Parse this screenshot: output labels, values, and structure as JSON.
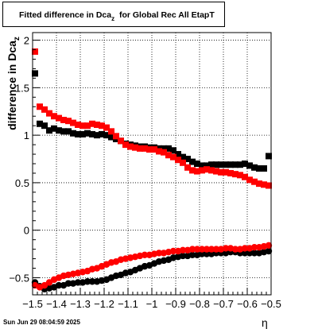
{
  "title": {
    "main": "Fitted difference in Dca",
    "subscript": "z",
    "suffix": "for Global Rec All EtapT"
  },
  "footer": "Sun Jun 29 08:04:59 2025",
  "chart_data": {
    "type": "scatter",
    "title": "Fitted difference in Dca_z for Global Rec All EtapT",
    "xlabel": "η",
    "ylabel": "difference in Dca_z",
    "xlim": [
      -1.5,
      -0.5
    ],
    "ylim": [
      -0.68,
      2.08
    ],
    "grid": true,
    "x_ticks": [
      -1.5,
      -1.4,
      -1.3,
      -1.2,
      -1.1,
      -1,
      -0.9,
      -0.8,
      -0.7,
      -0.6,
      -0.5
    ],
    "x_tick_labels": [
      "−1.5",
      "−1.4",
      "−1.3",
      "−1.2",
      "−1.1",
      "−1",
      "−0.9",
      "−0.8",
      "−0.7",
      "−0.6",
      "−0.5"
    ],
    "y_ticks": [
      -0.5,
      0,
      0.5,
      1,
      1.5,
      2
    ],
    "y_tick_labels": [
      "−0.5",
      "0",
      "0.5",
      "1",
      "1.5",
      "2"
    ],
    "series": [
      {
        "color": "#000000",
        "marker": "square",
        "x": [
          -1.49,
          -1.47,
          -1.45,
          -1.43,
          -1.41,
          -1.39,
          -1.37,
          -1.35,
          -1.33,
          -1.31,
          -1.29,
          -1.27,
          -1.25,
          -1.23,
          -1.21,
          -1.19,
          -1.17,
          -1.15,
          -1.13,
          -1.11,
          -1.09,
          -1.07,
          -1.05,
          -1.03,
          -1.01,
          -0.99,
          -0.97,
          -0.95,
          -0.93,
          -0.91,
          -0.89,
          -0.87,
          -0.85,
          -0.83,
          -0.81,
          -0.79,
          -0.77,
          -0.75,
          -0.73,
          -0.71,
          -0.69,
          -0.67,
          -0.65,
          -0.63,
          -0.61,
          -0.59,
          -0.57,
          -0.55,
          -0.53,
          -0.51
        ],
        "y": [
          1.65,
          1.12,
          1.1,
          1.05,
          1.07,
          1.05,
          1.04,
          1.04,
          1.02,
          1.01,
          1.01,
          1.02,
          1.01,
          1.0,
          1.01,
          1.0,
          0.98,
          0.96,
          0.94,
          0.91,
          0.9,
          0.89,
          0.88,
          0.88,
          0.87,
          0.87,
          0.86,
          0.86,
          0.86,
          0.84,
          0.8,
          0.77,
          0.75,
          0.72,
          0.7,
          0.68,
          0.68,
          0.69,
          0.69,
          0.69,
          0.69,
          0.69,
          0.69,
          0.69,
          0.7,
          0.68,
          0.66,
          0.65,
          0.65,
          0.78
        ]
      },
      {
        "color": "#ff0000",
        "marker": "square",
        "x": [
          -1.49,
          -1.47,
          -1.45,
          -1.43,
          -1.41,
          -1.39,
          -1.37,
          -1.35,
          -1.33,
          -1.31,
          -1.29,
          -1.27,
          -1.25,
          -1.23,
          -1.21,
          -1.19,
          -1.17,
          -1.15,
          -1.13,
          -1.11,
          -1.09,
          -1.07,
          -1.05,
          -1.03,
          -1.01,
          -0.99,
          -0.97,
          -0.95,
          -0.93,
          -0.91,
          -0.89,
          -0.87,
          -0.85,
          -0.83,
          -0.81,
          -0.79,
          -0.77,
          -0.75,
          -0.73,
          -0.71,
          -0.69,
          -0.67,
          -0.65,
          -0.63,
          -0.61,
          -0.59,
          -0.57,
          -0.55,
          -0.53,
          -0.51
        ],
        "y": [
          1.88,
          1.3,
          1.27,
          1.23,
          1.2,
          1.18,
          1.16,
          1.15,
          1.13,
          1.11,
          1.1,
          1.1,
          1.12,
          1.11,
          1.1,
          1.08,
          1.04,
          0.99,
          0.94,
          0.9,
          0.88,
          0.87,
          0.86,
          0.86,
          0.85,
          0.85,
          0.83,
          0.82,
          0.79,
          0.77,
          0.74,
          0.71,
          0.66,
          0.63,
          0.62,
          0.63,
          0.64,
          0.63,
          0.62,
          0.61,
          0.61,
          0.6,
          0.59,
          0.58,
          0.56,
          0.53,
          0.51,
          0.49,
          0.48,
          0.47
        ]
      },
      {
        "color": "#000000",
        "marker": "circle",
        "x": [
          -1.49,
          -1.47,
          -1.45,
          -1.43,
          -1.41,
          -1.39,
          -1.37,
          -1.35,
          -1.33,
          -1.31,
          -1.29,
          -1.27,
          -1.25,
          -1.23,
          -1.21,
          -1.19,
          -1.17,
          -1.15,
          -1.13,
          -1.11,
          -1.09,
          -1.07,
          -1.05,
          -1.03,
          -1.01,
          -0.99,
          -0.97,
          -0.95,
          -0.93,
          -0.91,
          -0.89,
          -0.87,
          -0.85,
          -0.83,
          -0.81,
          -0.79,
          -0.77,
          -0.75,
          -0.73,
          -0.71,
          -0.69,
          -0.67,
          -0.65,
          -0.63,
          -0.61,
          -0.59,
          -0.57,
          -0.55,
          -0.53,
          -0.51
        ],
        "y": [
          -0.55,
          -0.59,
          -0.62,
          -0.61,
          -0.6,
          -0.58,
          -0.58,
          -0.56,
          -0.56,
          -0.55,
          -0.55,
          -0.54,
          -0.54,
          -0.54,
          -0.53,
          -0.52,
          -0.5,
          -0.48,
          -0.47,
          -0.45,
          -0.44,
          -0.42,
          -0.4,
          -0.38,
          -0.37,
          -0.35,
          -0.33,
          -0.32,
          -0.31,
          -0.29,
          -0.28,
          -0.27,
          -0.27,
          -0.26,
          -0.26,
          -0.25,
          -0.25,
          -0.25,
          -0.24,
          -0.24,
          -0.24,
          -0.23,
          -0.23,
          -0.24,
          -0.24,
          -0.24,
          -0.24,
          -0.24,
          -0.23,
          -0.22
        ]
      },
      {
        "color": "#ff0000",
        "marker": "circle",
        "x": [
          -1.49,
          -1.47,
          -1.45,
          -1.43,
          -1.41,
          -1.39,
          -1.37,
          -1.35,
          -1.33,
          -1.31,
          -1.29,
          -1.27,
          -1.25,
          -1.23,
          -1.21,
          -1.19,
          -1.17,
          -1.15,
          -1.13,
          -1.11,
          -1.09,
          -1.07,
          -1.05,
          -1.03,
          -1.01,
          -0.99,
          -0.97,
          -0.95,
          -0.93,
          -0.91,
          -0.89,
          -0.87,
          -0.85,
          -0.83,
          -0.81,
          -0.79,
          -0.77,
          -0.75,
          -0.73,
          -0.71,
          -0.69,
          -0.67,
          -0.65,
          -0.63,
          -0.61,
          -0.59,
          -0.57,
          -0.55,
          -0.53,
          -0.51
        ],
        "y": [
          -0.58,
          -0.6,
          -0.58,
          -0.55,
          -0.52,
          -0.5,
          -0.48,
          -0.47,
          -0.46,
          -0.45,
          -0.44,
          -0.43,
          -0.41,
          -0.4,
          -0.38,
          -0.36,
          -0.34,
          -0.33,
          -0.31,
          -0.3,
          -0.29,
          -0.28,
          -0.27,
          -0.26,
          -0.26,
          -0.25,
          -0.24,
          -0.24,
          -0.23,
          -0.22,
          -0.22,
          -0.21,
          -0.21,
          -0.2,
          -0.2,
          -0.2,
          -0.2,
          -0.2,
          -0.2,
          -0.2,
          -0.19,
          -0.19,
          -0.2,
          -0.2,
          -0.19,
          -0.19,
          -0.18,
          -0.18,
          -0.17,
          -0.16
        ]
      }
    ]
  }
}
